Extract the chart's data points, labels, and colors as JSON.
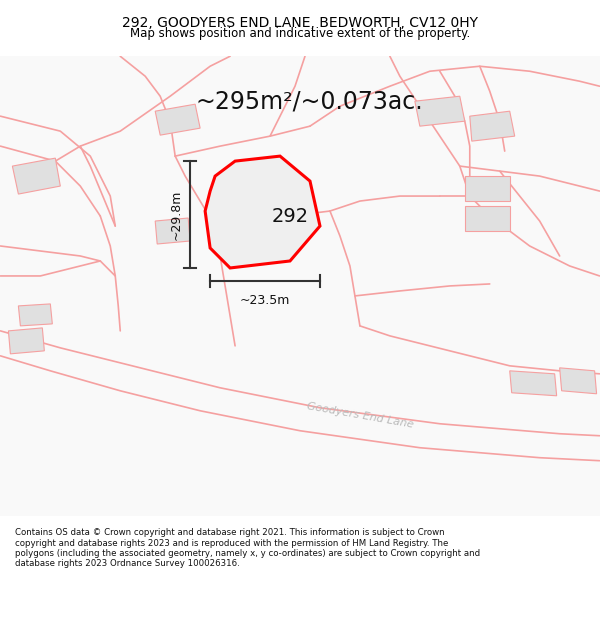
{
  "title": "292, GOODYERS END LANE, BEDWORTH, CV12 0HY",
  "subtitle": "Map shows position and indicative extent of the property.",
  "footer": "Contains OS data © Crown copyright and database right 2021. This information is subject to Crown copyright and database rights 2023 and is reproduced with the permission of HM Land Registry. The polygons (including the associated geometry, namely x, y co-ordinates) are subject to Crown copyright and database rights 2023 Ordnance Survey 100026316.",
  "area_label": "~295m²/~0.073ac.",
  "property_number": "292",
  "dim_height": "~29.8m",
  "dim_width": "~23.5m",
  "road_label": "Goodyers End Lane",
  "bg_color": "#ffffff",
  "road_line_color": "#f5a0a0",
  "plot_edge": "#ff0000",
  "plot_fill": "#eeeeee",
  "building_fill": "#e0e0e0",
  "building_edge": "#f5a0a0",
  "dim_color": "#333333",
  "title_fontsize": 10,
  "subtitle_fontsize": 8.5,
  "footer_fontsize": 6.2,
  "area_fontsize": 17,
  "number_fontsize": 14,
  "dim_fontsize": 9,
  "road_fontsize": 8
}
